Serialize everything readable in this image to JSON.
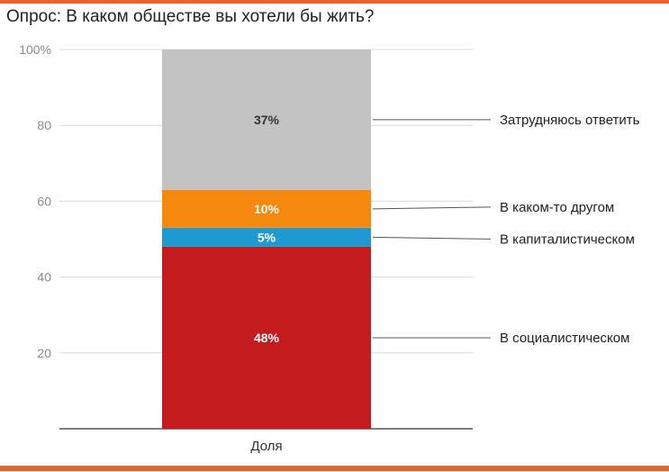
{
  "title": "Опрос: В каком обществе вы хотели бы жить?",
  "accent_color": "#e8642a",
  "chart_data": {
    "type": "bar",
    "stacked": true,
    "categories": [
      "Доля"
    ],
    "series": [
      {
        "name": "В социалистическом",
        "values": [
          48
        ],
        "label": "48%",
        "color": "#c41b1f",
        "label_color": "#ffffff"
      },
      {
        "name": "В капиталистическом",
        "values": [
          5
        ],
        "label": "5%",
        "color": "#1f9ad1",
        "label_color": "#ffffff"
      },
      {
        "name": "В каком-то другом",
        "values": [
          10
        ],
        "label": "10%",
        "color": "#f7880e",
        "label_color": "#ffffff"
      },
      {
        "name": "Затрудняюсь ответить",
        "values": [
          37
        ],
        "label": "37%",
        "color": "#c3c3c3",
        "label_color": "#333333"
      }
    ],
    "ylim": [
      0,
      100
    ],
    "yticks": [
      {
        "value": 20,
        "label": "20"
      },
      {
        "value": 40,
        "label": "40"
      },
      {
        "value": 60,
        "label": "60"
      },
      {
        "value": 80,
        "label": "80"
      },
      {
        "value": 100,
        "label": "100%"
      }
    ],
    "grid": true,
    "legend_position": "right"
  }
}
